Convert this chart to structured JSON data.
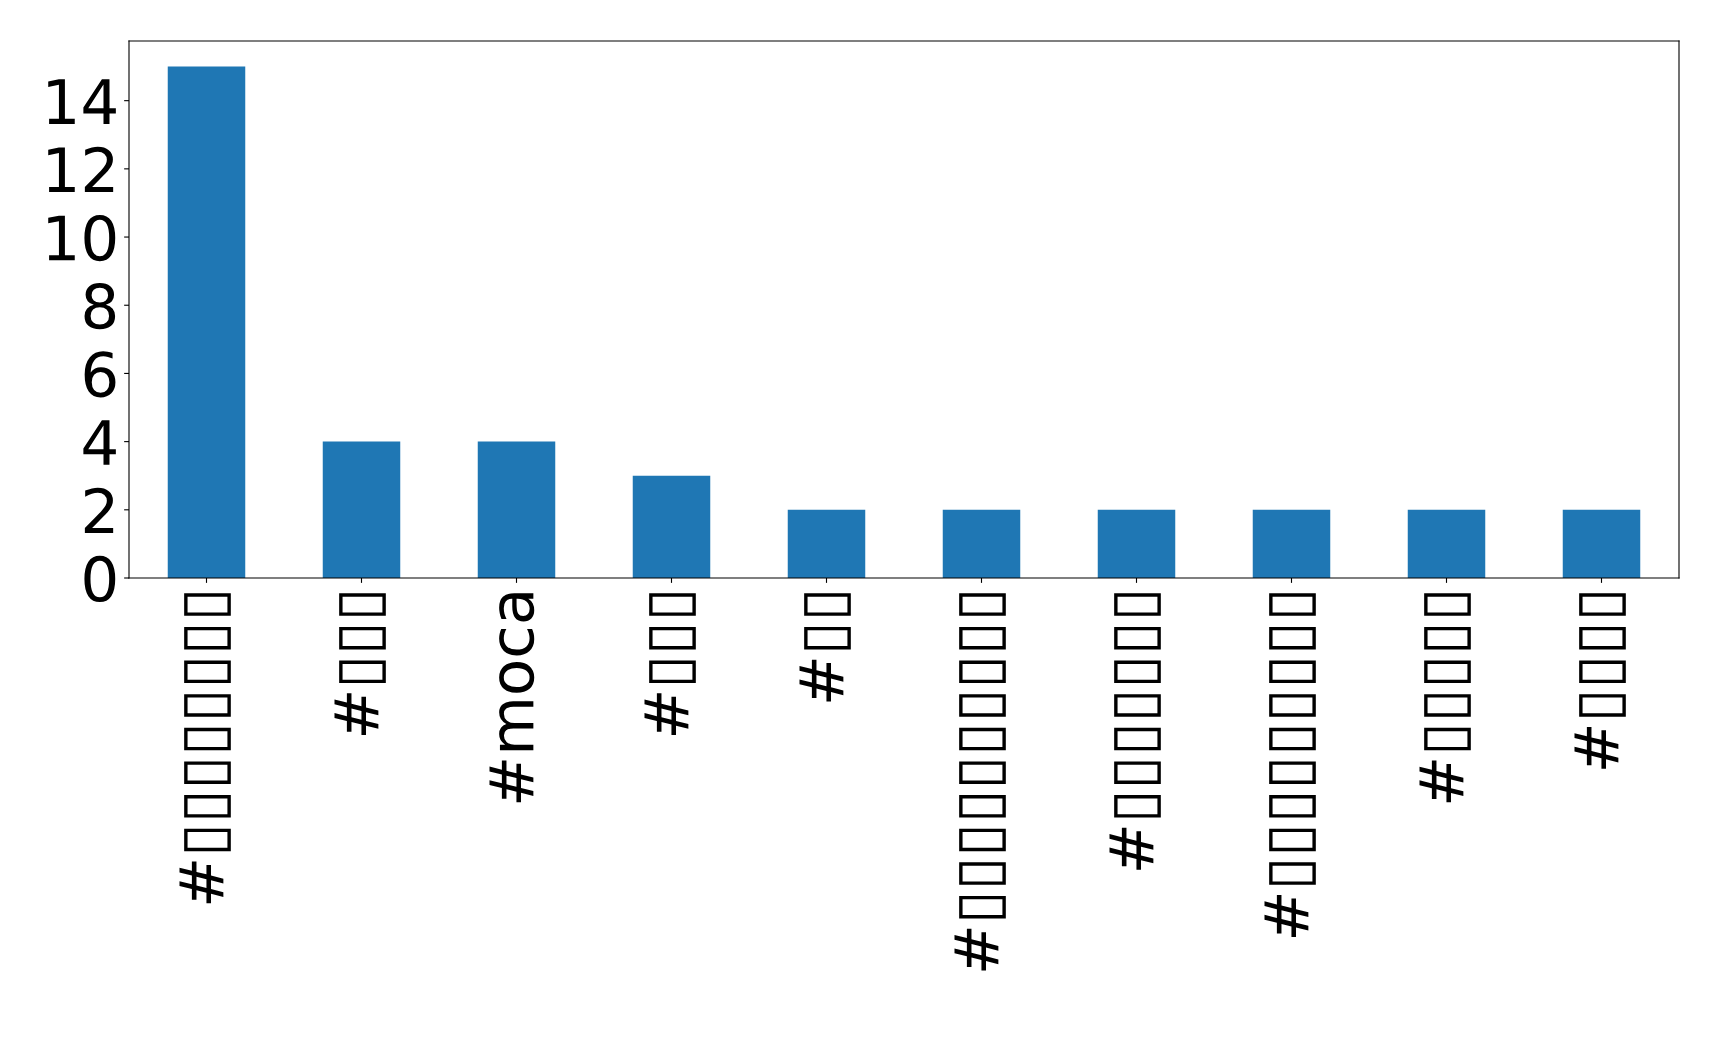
{
  "chart_data": {
    "type": "bar",
    "categories": [
      "#▯▯▯▯▯▯▯▯",
      "#▯▯▯",
      "#moca",
      "#▯▯▯",
      "#▯▯",
      "#▯▯▯▯▯▯▯▯▯▯",
      "#▯▯▯▯▯▯▯",
      "#▯▯▯▯▯▯▯▯▯",
      "#▯▯▯▯▯",
      "#▯▯▯▯"
    ],
    "values": [
      15,
      4,
      4,
      3,
      2,
      2,
      2,
      2,
      2,
      2
    ],
    "color": "#1f77b4",
    "ylim": [
      0,
      15.75
    ],
    "yticks": [
      0,
      2,
      4,
      6,
      8,
      10,
      12,
      14
    ],
    "grid": false
  }
}
